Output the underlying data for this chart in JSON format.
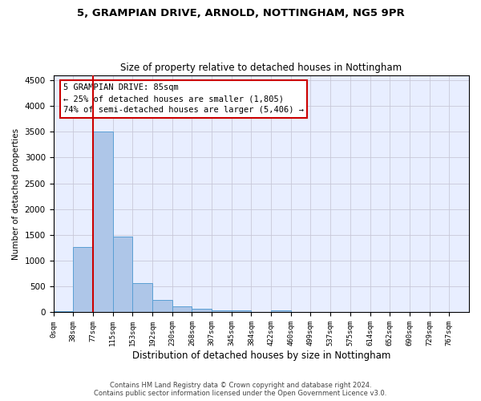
{
  "title1": "5, GRAMPIAN DRIVE, ARNOLD, NOTTINGHAM, NG5 9PR",
  "title2": "Size of property relative to detached houses in Nottingham",
  "xlabel": "Distribution of detached houses by size in Nottingham",
  "ylabel": "Number of detached properties",
  "bin_labels": [
    "0sqm",
    "38sqm",
    "77sqm",
    "115sqm",
    "153sqm",
    "192sqm",
    "230sqm",
    "268sqm",
    "307sqm",
    "345sqm",
    "384sqm",
    "422sqm",
    "460sqm",
    "499sqm",
    "537sqm",
    "575sqm",
    "614sqm",
    "652sqm",
    "690sqm",
    "729sqm",
    "767sqm"
  ],
  "bar_values": [
    30,
    1270,
    3500,
    1470,
    570,
    235,
    110,
    75,
    45,
    35,
    0,
    45,
    0,
    0,
    0,
    0,
    0,
    0,
    0,
    0,
    0
  ],
  "bar_color": "#aec6e8",
  "bar_edgecolor": "#5a9fd4",
  "vline_x": 2,
  "vline_color": "#cc0000",
  "ylim": [
    0,
    4600
  ],
  "yticks": [
    0,
    500,
    1000,
    1500,
    2000,
    2500,
    3000,
    3500,
    4000,
    4500
  ],
  "annotation_text": "5 GRAMPIAN DRIVE: 85sqm\n← 25% of detached houses are smaller (1,805)\n74% of semi-detached houses are larger (5,406) →",
  "annotation_box_color": "#ffffff",
  "annotation_box_edgecolor": "#cc0000",
  "footer1": "Contains HM Land Registry data © Crown copyright and database right 2024.",
  "footer2": "Contains public sector information licensed under the Open Government Licence v3.0.",
  "plot_bg_color": "#e8eeff",
  "grid_color": "#c8c8d8"
}
